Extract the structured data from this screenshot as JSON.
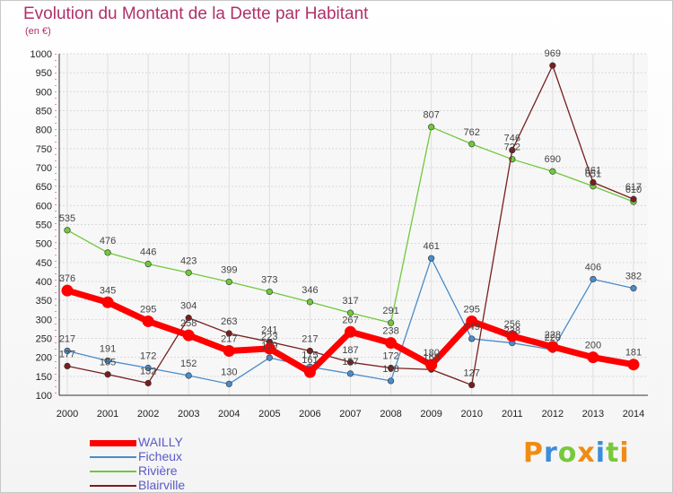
{
  "header": {
    "title": "Evolution du Montant de la Dette par Habitant",
    "subtitle": "(en €)"
  },
  "chart_data": {
    "type": "line",
    "title": "Evolution du Montant de la Dette par Habitant",
    "ylabel": "(en €)",
    "xlabel": "",
    "ylim": [
      100,
      1000
    ],
    "yticks": [
      100,
      150,
      200,
      250,
      300,
      350,
      400,
      450,
      500,
      550,
      600,
      650,
      700,
      750,
      800,
      850,
      900,
      950,
      1000
    ],
    "categories": [
      "2000",
      "2001",
      "2002",
      "2003",
      "2004",
      "2005",
      "2006",
      "2007",
      "2008",
      "2009",
      "2010",
      "2011",
      "2012",
      "2013",
      "2014"
    ],
    "grid": true,
    "legend_position": "bottom-left",
    "series": [
      {
        "name": "WAILLY",
        "color": "#ff0000",
        "values": [
          376,
          345,
          295,
          258,
          217,
          223,
          161,
          267,
          238,
          180,
          295,
          256,
          228,
          200,
          181
        ]
      },
      {
        "name": "Ficheux",
        "color": "#4a8cc8",
        "values": [
          217,
          191,
          172,
          152,
          130,
          199,
          175,
          157,
          138,
          461,
          249,
          238,
          220,
          406,
          382
        ]
      },
      {
        "name": "Rivière",
        "color": "#70c83c",
        "values": [
          535,
          476,
          446,
          423,
          399,
          373,
          346,
          317,
          291,
          807,
          762,
          722,
          690,
          651,
          610
        ]
      },
      {
        "name": "Blairville",
        "color": "#781e1e",
        "values": [
          177,
          155,
          132,
          304,
          263,
          241,
          217,
          187,
          172,
          168,
          127,
          746,
          969,
          661,
          617
        ]
      }
    ]
  },
  "logo": {
    "letters": [
      "P",
      "r",
      "o",
      "x",
      "i",
      "t",
      "i"
    ],
    "colors": [
      "#f08c14",
      "#3c8cdc",
      "#78c83c",
      "#f08c14",
      "#3c8cdc",
      "#78c83c",
      "#f08c14"
    ]
  }
}
